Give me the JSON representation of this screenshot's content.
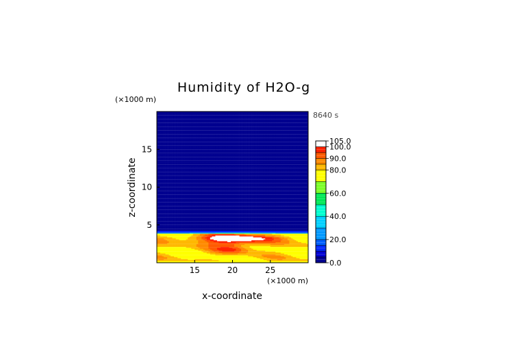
{
  "chart_data": {
    "type": "heatmap",
    "title": "Humidity of H2O-g",
    "xlabel": "x-coordinate",
    "ylabel": "z-coordinate",
    "x_unit": "(×1000 m)",
    "y_unit": "(×1000 m)",
    "time_label": "8640 s",
    "xlim": [
      10,
      30
    ],
    "ylim": [
      0,
      20
    ],
    "x_ticks": [
      15,
      20,
      25
    ],
    "y_ticks": [
      5,
      10,
      15
    ],
    "colorbar": {
      "min": 0,
      "max": 105,
      "labels": [
        "0.0",
        "20.0",
        "40.0",
        "60.0",
        "80.0",
        "90.0",
        "100.0",
        "105.0"
      ],
      "levels": [
        {
          "value": 0,
          "color": "#00008f"
        },
        {
          "value": 5,
          "color": "#0000d2"
        },
        {
          "value": 10,
          "color": "#0028ff"
        },
        {
          "value": 15,
          "color": "#0060ff"
        },
        {
          "value": 20,
          "color": "#0098ff"
        },
        {
          "value": 30,
          "color": "#00d0ff"
        },
        {
          "value": 40,
          "color": "#00ffd0"
        },
        {
          "value": 50,
          "color": "#00e858"
        },
        {
          "value": 60,
          "color": "#7cff28"
        },
        {
          "value": 70,
          "color": "#ffff00"
        },
        {
          "value": 80,
          "color": "#ffb800"
        },
        {
          "value": 85,
          "color": "#ff8a00"
        },
        {
          "value": 90,
          "color": "#ff5a00"
        },
        {
          "value": 95,
          "color": "#ff2200"
        },
        {
          "value": 100,
          "color": "#ffffff"
        }
      ]
    },
    "field_description": "Near 0 above ~4 km; moist layer 0–4 km with 75–90 near the surface, a cyan/green transition at ~3.9 km and a saturated (~95–100) core centred at x≈20, z≈2.5–3.5."
  }
}
